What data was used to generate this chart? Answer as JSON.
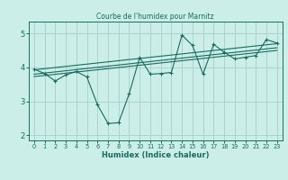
{
  "title": "Courbe de l'humidex pour Marnitz",
  "xlabel": "Humidex (Indice chaleur)",
  "background_color": "#cceee8",
  "grid_color": "#aad4ce",
  "line_color": "#1a6b5e",
  "xlim": [
    -0.5,
    23.5
  ],
  "ylim": [
    1.85,
    5.35
  ],
  "yticks": [
    2,
    3,
    4,
    5
  ],
  "xticks": [
    0,
    1,
    2,
    3,
    4,
    5,
    6,
    7,
    8,
    9,
    10,
    11,
    12,
    13,
    14,
    15,
    16,
    17,
    18,
    19,
    20,
    21,
    22,
    23
  ],
  "data_x": [
    0,
    1,
    2,
    3,
    4,
    5,
    6,
    7,
    8,
    9,
    10,
    11,
    12,
    13,
    14,
    15,
    16,
    17,
    18,
    19,
    20,
    21,
    22,
    23
  ],
  "data_y": [
    3.95,
    3.82,
    3.6,
    3.78,
    3.88,
    3.72,
    2.9,
    2.35,
    2.37,
    3.22,
    4.3,
    3.8,
    3.82,
    3.85,
    4.95,
    4.65,
    3.8,
    4.68,
    4.45,
    4.25,
    4.3,
    4.35,
    4.82,
    4.72
  ],
  "trend1_x": [
    0,
    23
  ],
  "trend1_y": [
    3.8,
    4.58
  ],
  "trend2_x": [
    0,
    23
  ],
  "trend2_y": [
    3.93,
    4.7
  ],
  "trend3_x": [
    0,
    23
  ],
  "trend3_y": [
    3.73,
    4.5
  ]
}
